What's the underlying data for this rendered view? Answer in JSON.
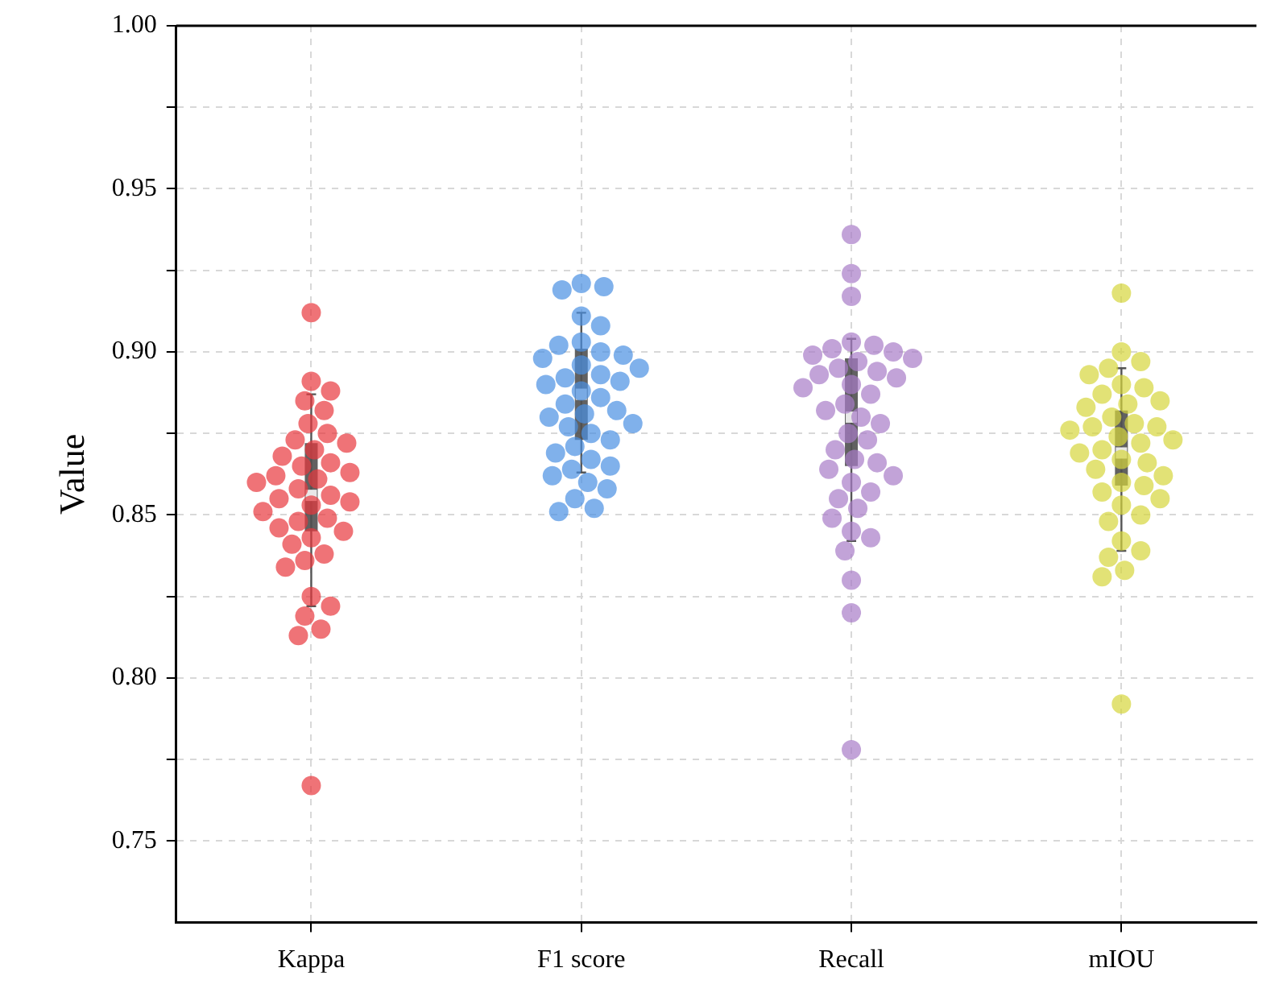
{
  "chart_data": {
    "type": "box",
    "ylabel": "Value",
    "categories": [
      "Kappa",
      "F1 score",
      "Recall",
      "mIOU"
    ],
    "ylim": [
      0.725,
      1.0
    ],
    "yticks": [
      {
        "value": 0.75,
        "label": "0.75"
      },
      {
        "value": 0.775,
        "label": null
      },
      {
        "value": 0.8,
        "label": "0.80"
      },
      {
        "value": 0.825,
        "label": null
      },
      {
        "value": 0.85,
        "label": "0.85"
      },
      {
        "value": 0.875,
        "label": null
      },
      {
        "value": 0.9,
        "label": "0.90"
      },
      {
        "value": 0.925,
        "label": null
      },
      {
        "value": 0.95,
        "label": "0.95"
      },
      {
        "value": 0.975,
        "label": null
      },
      {
        "value": 1.0,
        "label": "1.00"
      }
    ],
    "grid": true,
    "legend": false,
    "boxes": [
      {
        "low": 0.822,
        "q1": 0.845,
        "median": 0.856,
        "q3": 0.872,
        "high": 0.887
      },
      {
        "low": 0.863,
        "q1": 0.873,
        "median": 0.887,
        "q3": 0.901,
        "high": 0.912
      },
      {
        "low": 0.842,
        "q1": 0.865,
        "median": 0.88,
        "q3": 0.898,
        "high": 0.904
      },
      {
        "low": 0.839,
        "q1": 0.859,
        "median": 0.869,
        "q3": 0.882,
        "high": 0.895
      }
    ],
    "series": [
      {
        "type": "scatter",
        "color": "#e8383d",
        "x": [
          "Kappa",
          "Kappa",
          "Kappa",
          "Kappa",
          "Kappa",
          "Kappa",
          "Kappa",
          "Kappa",
          "Kappa",
          "Kappa",
          "Kappa",
          "Kappa",
          "Kappa",
          "Kappa",
          "Kappa",
          "Kappa",
          "Kappa",
          "Kappa",
          "Kappa",
          "Kappa",
          "Kappa",
          "Kappa",
          "Kappa",
          "Kappa",
          "Kappa",
          "Kappa",
          "Kappa",
          "Kappa",
          "Kappa",
          "Kappa",
          "Kappa",
          "Kappa",
          "Kappa",
          "Kappa",
          "Kappa",
          "Kappa",
          "Kappa",
          "Kappa"
        ],
        "values": [
          0.912,
          0.891,
          0.888,
          0.885,
          0.882,
          0.878,
          0.875,
          0.873,
          0.872,
          0.87,
          0.868,
          0.866,
          0.865,
          0.863,
          0.862,
          0.861,
          0.86,
          0.858,
          0.856,
          0.855,
          0.854,
          0.853,
          0.851,
          0.849,
          0.848,
          0.846,
          0.845,
          0.843,
          0.841,
          0.838,
          0.836,
          0.834,
          0.825,
          0.822,
          0.819,
          0.815,
          0.813,
          0.767
        ]
      },
      {
        "type": "scatter",
        "color": "#4a90e2",
        "x": [
          "F1 score",
          "F1 score",
          "F1 score",
          "F1 score",
          "F1 score",
          "F1 score",
          "F1 score",
          "F1 score",
          "F1 score",
          "F1 score",
          "F1 score",
          "F1 score",
          "F1 score",
          "F1 score",
          "F1 score",
          "F1 score",
          "F1 score",
          "F1 score",
          "F1 score",
          "F1 score",
          "F1 score",
          "F1 score",
          "F1 score",
          "F1 score",
          "F1 score",
          "F1 score",
          "F1 score",
          "F1 score",
          "F1 score",
          "F1 score",
          "F1 score",
          "F1 score",
          "F1 score",
          "F1 score",
          "F1 score",
          "F1 score",
          "F1 score"
        ],
        "values": [
          0.921,
          0.92,
          0.919,
          0.911,
          0.908,
          0.903,
          0.902,
          0.9,
          0.899,
          0.898,
          0.896,
          0.895,
          0.893,
          0.892,
          0.891,
          0.89,
          0.888,
          0.886,
          0.884,
          0.882,
          0.881,
          0.88,
          0.878,
          0.877,
          0.875,
          0.873,
          0.871,
          0.869,
          0.867,
          0.865,
          0.864,
          0.862,
          0.86,
          0.858,
          0.855,
          0.852,
          0.851
        ]
      },
      {
        "type": "scatter",
        "color": "#a87cc8",
        "x": [
          "Recall",
          "Recall",
          "Recall",
          "Recall",
          "Recall",
          "Recall",
          "Recall",
          "Recall",
          "Recall",
          "Recall",
          "Recall",
          "Recall",
          "Recall",
          "Recall",
          "Recall",
          "Recall",
          "Recall",
          "Recall",
          "Recall",
          "Recall",
          "Recall",
          "Recall",
          "Recall",
          "Recall",
          "Recall",
          "Recall",
          "Recall",
          "Recall",
          "Recall",
          "Recall",
          "Recall",
          "Recall",
          "Recall",
          "Recall",
          "Recall",
          "Recall",
          "Recall",
          "Recall",
          "Recall"
        ],
        "values": [
          0.936,
          0.924,
          0.917,
          0.903,
          0.902,
          0.901,
          0.9,
          0.899,
          0.898,
          0.897,
          0.895,
          0.894,
          0.893,
          0.892,
          0.89,
          0.889,
          0.887,
          0.884,
          0.882,
          0.88,
          0.878,
          0.875,
          0.873,
          0.87,
          0.867,
          0.866,
          0.864,
          0.862,
          0.86,
          0.857,
          0.855,
          0.852,
          0.849,
          0.845,
          0.843,
          0.839,
          0.83,
          0.82,
          0.778
        ]
      },
      {
        "type": "scatter",
        "color": "#d6d63c",
        "x": [
          "mIOU",
          "mIOU",
          "mIOU",
          "mIOU",
          "mIOU",
          "mIOU",
          "mIOU",
          "mIOU",
          "mIOU",
          "mIOU",
          "mIOU",
          "mIOU",
          "mIOU",
          "mIOU",
          "mIOU",
          "mIOU",
          "mIOU",
          "mIOU",
          "mIOU",
          "mIOU",
          "mIOU",
          "mIOU",
          "mIOU",
          "mIOU",
          "mIOU",
          "mIOU",
          "mIOU",
          "mIOU",
          "mIOU",
          "mIOU",
          "mIOU",
          "mIOU",
          "mIOU",
          "mIOU",
          "mIOU",
          "mIOU",
          "mIOU",
          "mIOU"
        ],
        "values": [
          0.918,
          0.9,
          0.897,
          0.895,
          0.893,
          0.89,
          0.889,
          0.887,
          0.885,
          0.884,
          0.883,
          0.88,
          0.878,
          0.877,
          0.877,
          0.876,
          0.874,
          0.873,
          0.872,
          0.87,
          0.869,
          0.867,
          0.866,
          0.864,
          0.862,
          0.86,
          0.859,
          0.857,
          0.855,
          0.853,
          0.85,
          0.848,
          0.842,
          0.839,
          0.837,
          0.833,
          0.831,
          0.792
        ]
      }
    ]
  }
}
